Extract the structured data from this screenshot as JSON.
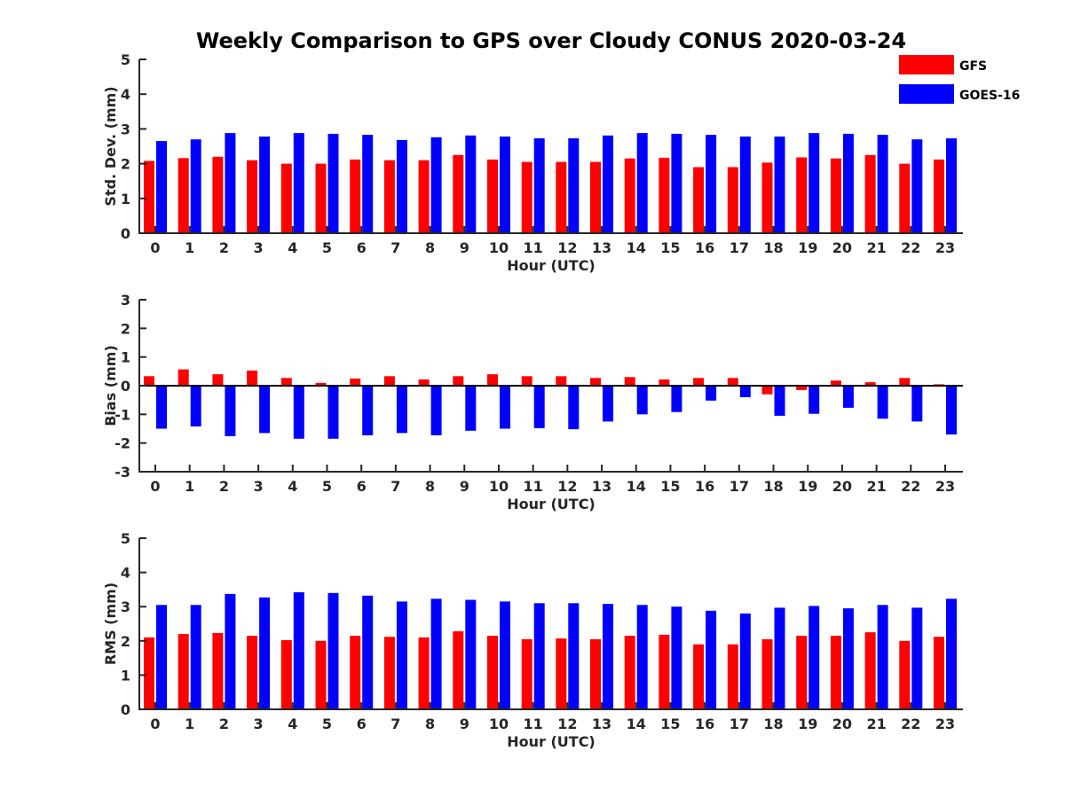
{
  "title": "Weekly Comparison to GPS over Cloudy CONUS 2020-03-24",
  "legend": [
    {
      "name": "GFS",
      "color": "#ff0000"
    },
    {
      "name": "GOES-16",
      "color": "#0000ff"
    }
  ],
  "chart_data": [
    {
      "type": "bar",
      "xlabel": "Hour (UTC)",
      "ylabel": "Std. Dev. (mm)",
      "ylim": [
        0,
        5
      ],
      "yticks": [
        0,
        1,
        2,
        3,
        4,
        5
      ],
      "categories": [
        "0",
        "1",
        "2",
        "3",
        "4",
        "5",
        "6",
        "7",
        "8",
        "9",
        "10",
        "11",
        "12",
        "13",
        "14",
        "15",
        "16",
        "17",
        "18",
        "19",
        "20",
        "21",
        "22",
        "23"
      ],
      "series": [
        {
          "name": "GFS",
          "color": "#ff0000",
          "values": [
            2.08,
            2.16,
            2.2,
            2.1,
            2.0,
            2.0,
            2.12,
            2.1,
            2.1,
            2.25,
            2.12,
            2.05,
            2.05,
            2.05,
            2.15,
            2.17,
            1.9,
            1.9,
            2.03,
            2.18,
            2.15,
            2.25,
            2.0,
            2.12
          ]
        },
        {
          "name": "GOES-16",
          "color": "#0000ff",
          "values": [
            2.65,
            2.7,
            2.88,
            2.78,
            2.88,
            2.86,
            2.83,
            2.68,
            2.76,
            2.81,
            2.78,
            2.73,
            2.73,
            2.81,
            2.88,
            2.86,
            2.83,
            2.78,
            2.78,
            2.88,
            2.86,
            2.83,
            2.7,
            2.73
          ]
        }
      ]
    },
    {
      "type": "bar",
      "xlabel": "Hour (UTC)",
      "ylabel": "Bias (mm)",
      "ylim": [
        -3,
        3
      ],
      "yticks": [
        -3,
        -2,
        -1,
        0,
        1,
        2,
        3
      ],
      "categories": [
        "0",
        "1",
        "2",
        "3",
        "4",
        "5",
        "6",
        "7",
        "8",
        "9",
        "10",
        "11",
        "12",
        "13",
        "14",
        "15",
        "16",
        "17",
        "18",
        "19",
        "20",
        "21",
        "22",
        "23"
      ],
      "series": [
        {
          "name": "GFS",
          "color": "#ff0000",
          "values": [
            0.33,
            0.57,
            0.4,
            0.53,
            0.27,
            0.1,
            0.25,
            0.33,
            0.22,
            0.33,
            0.4,
            0.33,
            0.33,
            0.27,
            0.3,
            0.22,
            0.27,
            0.27,
            -0.3,
            -0.15,
            0.18,
            0.12,
            0.27,
            0.05
          ]
        },
        {
          "name": "GOES-16",
          "color": "#0000ff",
          "values": [
            -1.5,
            -1.42,
            -1.76,
            -1.65,
            -1.85,
            -1.85,
            -1.73,
            -1.65,
            -1.73,
            -1.57,
            -1.5,
            -1.48,
            -1.52,
            -1.25,
            -1.0,
            -0.92,
            -0.52,
            -0.4,
            -1.05,
            -0.98,
            -0.77,
            -1.15,
            -1.25,
            -1.7
          ]
        }
      ]
    },
    {
      "type": "bar",
      "xlabel": "Hour (UTC)",
      "ylabel": "RMS (mm)",
      "ylim": [
        0,
        5
      ],
      "yticks": [
        0,
        1,
        2,
        3,
        4,
        5
      ],
      "categories": [
        "0",
        "1",
        "2",
        "3",
        "4",
        "5",
        "6",
        "7",
        "8",
        "9",
        "10",
        "11",
        "12",
        "13",
        "14",
        "15",
        "16",
        "17",
        "18",
        "19",
        "20",
        "21",
        "22",
        "23"
      ],
      "series": [
        {
          "name": "GFS",
          "color": "#ff0000",
          "values": [
            2.1,
            2.2,
            2.23,
            2.15,
            2.02,
            2.0,
            2.15,
            2.12,
            2.1,
            2.28,
            2.15,
            2.05,
            2.07,
            2.05,
            2.15,
            2.18,
            1.9,
            1.9,
            2.05,
            2.15,
            2.15,
            2.25,
            2.0,
            2.12
          ]
        },
        {
          "name": "GOES-16",
          "color": "#0000ff",
          "values": [
            3.05,
            3.05,
            3.37,
            3.27,
            3.42,
            3.4,
            3.32,
            3.15,
            3.23,
            3.2,
            3.15,
            3.1,
            3.1,
            3.08,
            3.05,
            3.0,
            2.88,
            2.8,
            2.97,
            3.02,
            2.95,
            3.05,
            2.97,
            3.23
          ]
        }
      ]
    }
  ]
}
